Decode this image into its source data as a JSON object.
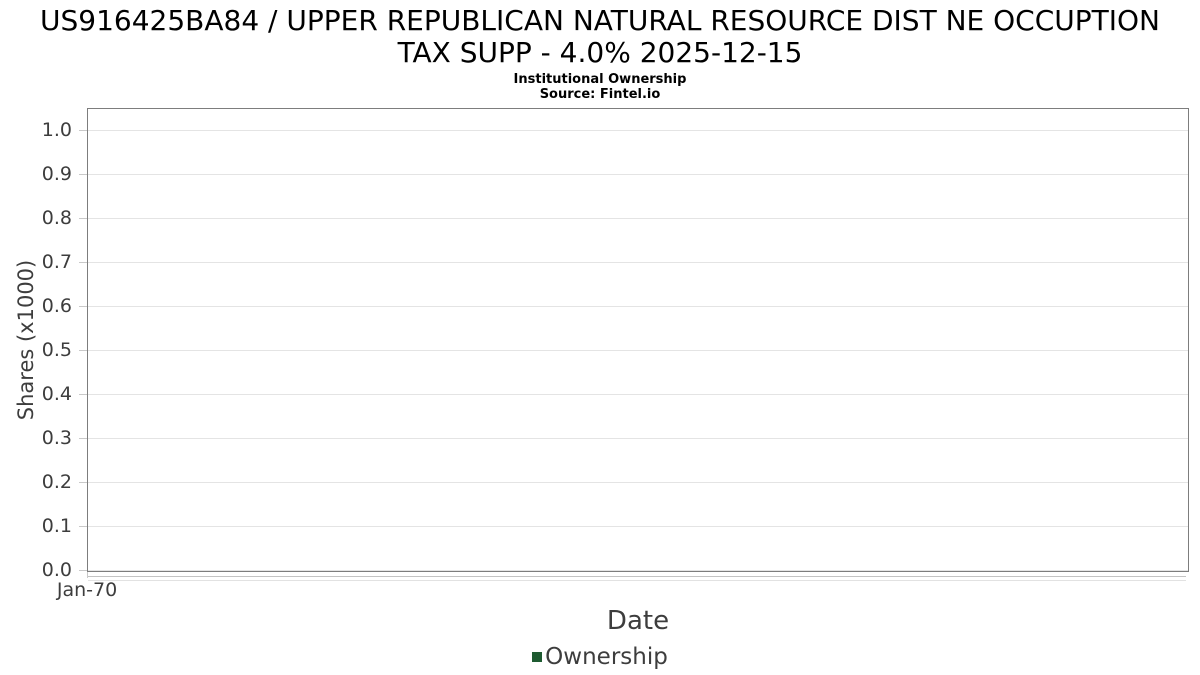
{
  "header": {
    "title_line1": "US916425BA84 / UPPER REPUBLICAN NATURAL RESOURCE DIST NE OCCUPTION",
    "title_line2": "TAX SUPP - 4.0% 2025-12-15",
    "subtitle": "Institutional Ownership",
    "source": "Source: Fintel.io"
  },
  "chart_data": {
    "type": "line",
    "title": "US916425BA84 / UPPER REPUBLICAN NATURAL RESOURCE DIST NE OCCUPTION TAX SUPP - 4.0% 2025-12-15",
    "subtitle": "Institutional Ownership",
    "source": "Source: Fintel.io",
    "xlabel": "Date",
    "ylabel": "Shares (x1000)",
    "x_tick_labels": [
      "Jan-70"
    ],
    "y_tick_labels": [
      "0.0",
      "0.1",
      "0.2",
      "0.3",
      "0.4",
      "0.5",
      "0.6",
      "0.7",
      "0.8",
      "0.9",
      "1.0"
    ],
    "y_tick_values": [
      0,
      0.1,
      0.2,
      0.3,
      0.4,
      0.5,
      0.6,
      0.7,
      0.8,
      0.9,
      1.0
    ],
    "ylim": [
      0,
      1.05
    ],
    "grid": true,
    "legend_position": "bottom",
    "series": [
      {
        "name": "Ownership",
        "color": "#1e5b31",
        "x": [],
        "values": []
      }
    ]
  },
  "colors": {
    "background": "#ffffff",
    "title_text": "#000000",
    "axis_text": "#3d3d3d",
    "plot_border": "#7d7d7d",
    "gridline": "#e4e4e4",
    "tick_mark": "#c9c9c9",
    "ownership_green": "#1e5b31"
  }
}
